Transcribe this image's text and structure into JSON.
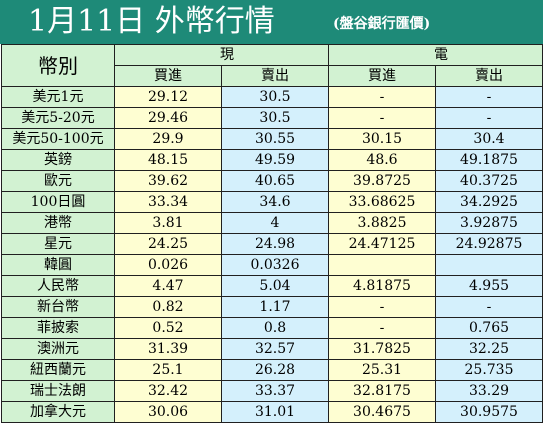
{
  "title": "1月11日 外幣行情",
  "subtitle": "(盤谷銀行匯價)",
  "headers": {
    "currency": "幣別",
    "cash": "現鈔",
    "wire": "電匯",
    "cash_buy": "買進",
    "cash_sell": "賣出",
    "wire_buy": "買進",
    "wire_sell": "賣出"
  },
  "rows": [
    {
      "currency": "美元1元",
      "cash_buy": "29.12",
      "cash_sell": "30.5",
      "wire_buy": "-",
      "wire_sell": "-"
    },
    {
      "currency": "美元5-20元",
      "cash_buy": "29.46",
      "cash_sell": "30.5",
      "wire_buy": "-",
      "wire_sell": "-"
    },
    {
      "currency": "美元50-100元",
      "cash_buy": "29.9",
      "cash_sell": "30.55",
      "wire_buy": "30.15",
      "wire_sell": "30.4"
    },
    {
      "currency": "英鎊",
      "cash_buy": "48.15",
      "cash_sell": "49.59",
      "wire_buy": "48.6",
      "wire_sell": "49.1875"
    },
    {
      "currency": "歐元",
      "cash_buy": "39.62",
      "cash_sell": "40.65",
      "wire_buy": "39.8725",
      "wire_sell": "40.3725"
    },
    {
      "currency": "100日圓",
      "cash_buy": "33.34",
      "cash_sell": "34.6",
      "wire_buy": "33.68625",
      "wire_sell": "34.2925"
    },
    {
      "currency": "港幣",
      "cash_buy": "3.81",
      "cash_sell": "4",
      "wire_buy": "3.8825",
      "wire_sell": "3.92875"
    },
    {
      "currency": "星元",
      "cash_buy": "24.25",
      "cash_sell": "24.98",
      "wire_buy": "24.47125",
      "wire_sell": "24.92875"
    },
    {
      "currency": "韓圓",
      "cash_buy": "0.026",
      "cash_sell": "0.0326",
      "wire_buy": "",
      "wire_sell": ""
    },
    {
      "currency": "人民幣",
      "cash_buy": "4.47",
      "cash_sell": "5.04",
      "wire_buy": "4.81875",
      "wire_sell": "4.955"
    },
    {
      "currency": "新台幣",
      "cash_buy": "0.82",
      "cash_sell": "1.17",
      "wire_buy": "-",
      "wire_sell": "-"
    },
    {
      "currency": "菲披索",
      "cash_buy": "0.52",
      "cash_sell": "0.8",
      "wire_buy": "-",
      "wire_sell": "0.765"
    },
    {
      "currency": "澳洲元",
      "cash_buy": "31.39",
      "cash_sell": "32.57",
      "wire_buy": "31.7825",
      "wire_sell": "32.25"
    },
    {
      "currency": "紐西蘭元",
      "cash_buy": "25.1",
      "cash_sell": "26.28",
      "wire_buy": "25.31",
      "wire_sell": "25.735"
    },
    {
      "currency": "瑞士法朗",
      "cash_buy": "32.42",
      "cash_sell": "33.37",
      "wire_buy": "32.8175",
      "wire_sell": "33.29"
    },
    {
      "currency": "加拿大元",
      "cash_buy": "30.06",
      "cash_sell": "31.01",
      "wire_buy": "30.4675",
      "wire_sell": "30.9575"
    }
  ],
  "colors": {
    "banner": "#1e8a78",
    "header_green": "#d2f2d2",
    "buy_yellow": "#fefed2",
    "sell_blue": "#d4f0fc"
  }
}
